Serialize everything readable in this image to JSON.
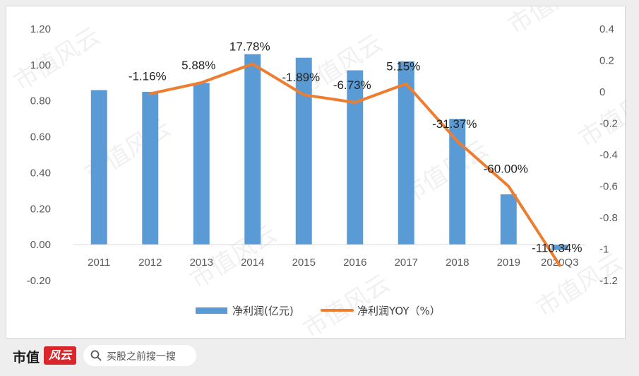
{
  "chart_data": {
    "type": "bar",
    "categories": [
      "2011",
      "2012",
      "2013",
      "2014",
      "2015",
      "2016",
      "2017",
      "2018",
      "2019",
      "2020Q3"
    ],
    "series": [
      {
        "name": "净利润(亿元)",
        "type": "bar",
        "axis": "left",
        "color": "#5b9bd5",
        "values": [
          0.86,
          0.85,
          0.9,
          1.06,
          1.04,
          0.97,
          1.02,
          0.7,
          0.28,
          -0.03
        ]
      },
      {
        "name": "净利润YOY（%）",
        "type": "line",
        "axis": "right",
        "color": "#ed7d31",
        "values": [
          null,
          -0.0116,
          0.0588,
          0.1778,
          -0.0189,
          -0.0673,
          0.0515,
          -0.3137,
          -0.6,
          -1.1034
        ],
        "labels": [
          null,
          "-1.16%",
          "5.88%",
          "17.78%",
          "-1.89%",
          "-6.73%",
          "5.15%",
          "-31.37%",
          "-60.00%",
          "-110.34%"
        ]
      }
    ],
    "left_axis": {
      "ylim": [
        -0.2,
        1.2
      ],
      "ticks": [
        1.2,
        1.0,
        0.8,
        0.6,
        0.4,
        0.2,
        0.0,
        -0.2
      ],
      "tick_labels": [
        "1.20",
        "1.00",
        "0.80",
        "0.60",
        "0.40",
        "0.20",
        "0.00",
        "-0.20"
      ]
    },
    "right_axis": {
      "ylim": [
        -1.2,
        0.4
      ],
      "ticks": [
        0.4,
        0.2,
        0,
        -0.2,
        -0.4,
        -0.6,
        -0.8,
        -1,
        -1.2
      ],
      "tick_labels": [
        "0.4",
        "0.2",
        "0",
        "-0.2",
        "-0.4",
        "-0.6",
        "-0.8",
        "-1",
        "-1.2"
      ]
    },
    "grid": false,
    "legend_position": "bottom",
    "title": "",
    "xlabel": "",
    "ylabel": ""
  },
  "watermark": {
    "text": "市值风云"
  },
  "footer": {
    "brand_name": "市值",
    "brand_badge": "风云",
    "search_placeholder": "买股之前搜一搜",
    "search_icon": "search-icon"
  }
}
